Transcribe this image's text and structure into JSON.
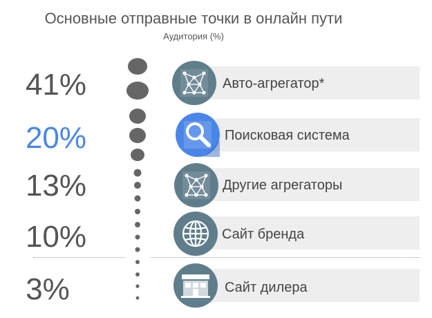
{
  "title": "Основные отправные точки в онлайн пути",
  "subtitle": "Аудитория (%)",
  "colors": {
    "highlight": "#4a86e8",
    "icon": "#607d8b",
    "text": "#555555",
    "bar": "#eeeeee"
  },
  "chart_data": {
    "type": "bar",
    "title": "Основные отправные точки в онлайн пути",
    "subtitle": "Аудитория (%)",
    "categories": [
      "Авто-агрегатор*",
      "Поисковая система",
      "Другие агрегаторы",
      "Сайт бренда",
      "Сайт дилера"
    ],
    "values": [
      41,
      20,
      13,
      10,
      3
    ],
    "value_labels": [
      "41%",
      "20%",
      "13%",
      "10%",
      "3%"
    ],
    "highlighted": "Поисковая система",
    "icons": [
      "network-icon",
      "search-icon",
      "network-icon",
      "globe-icon",
      "store-icon"
    ]
  }
}
